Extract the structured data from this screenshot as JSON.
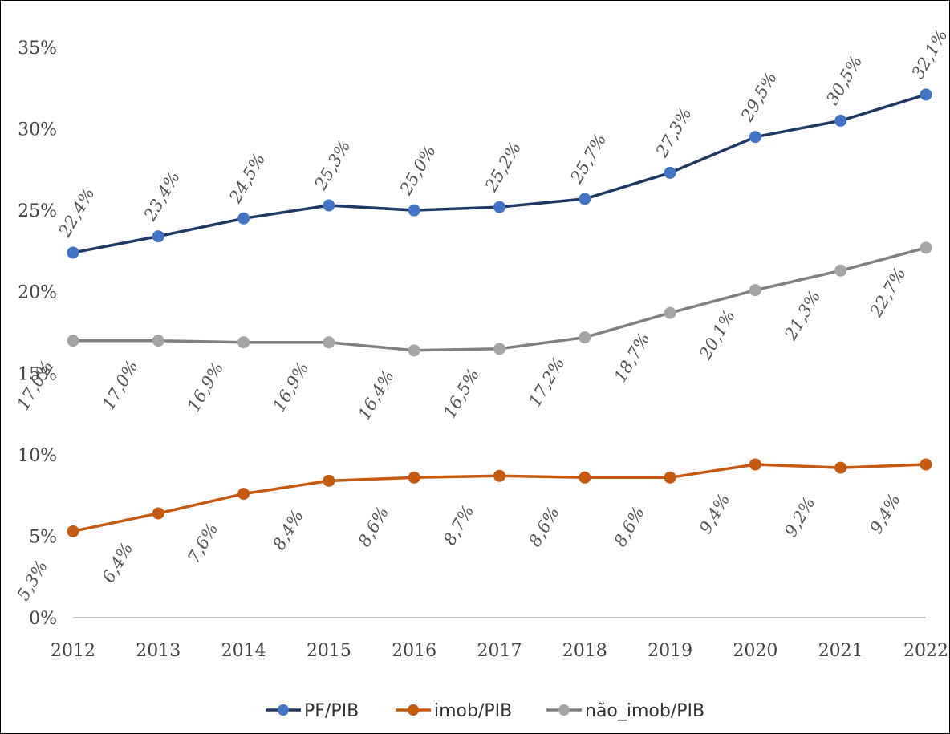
{
  "chart_data": {
    "type": "line",
    "title": "",
    "xlabel": "",
    "ylabel": "",
    "categories": [
      "2012",
      "2013",
      "2014",
      "2015",
      "2016",
      "2017",
      "2018",
      "2019",
      "2020",
      "2021",
      "2022"
    ],
    "ylim": [
      0,
      35
    ],
    "yticks": [
      "0%",
      "5%",
      "10%",
      "15%",
      "20%",
      "25%",
      "30%",
      "35%"
    ],
    "legend_position": "bottom",
    "grid": false,
    "series": [
      {
        "name": "PF/PIB",
        "color": "#203864",
        "marker_color": "#4472C4",
        "values": [
          22.4,
          23.4,
          24.5,
          25.3,
          25.0,
          25.2,
          25.7,
          27.3,
          29.5,
          30.5,
          32.1
        ],
        "labels": [
          "22,4%",
          "23,4%",
          "24,5%",
          "25,3%",
          "25,0%",
          "25,2%",
          "25,7%",
          "27,3%",
          "29,5%",
          "30,5%",
          "32,1%"
        ],
        "label_side": "above"
      },
      {
        "name": "imob/PIB",
        "color": "#C55A11",
        "marker_color": "#C55A11",
        "values": [
          5.3,
          6.4,
          7.6,
          8.4,
          8.6,
          8.7,
          8.6,
          8.6,
          9.4,
          9.2,
          9.4
        ],
        "labels": [
          "5,3%",
          "6,4%",
          "7,6%",
          "8,4%",
          "8,6%",
          "8,7%",
          "8,6%",
          "8,6%",
          "9,4%",
          "9,2%",
          "9,4%"
        ],
        "label_side": "below"
      },
      {
        "name": "não_imob/PIB",
        "color": "#808080",
        "marker_color": "#A5A5A5",
        "values": [
          17.0,
          17.0,
          16.9,
          16.9,
          16.4,
          16.5,
          17.2,
          18.7,
          20.1,
          21.3,
          22.7
        ],
        "labels": [
          "17,0%",
          "17,0%",
          "16,9%",
          "16,9%",
          "16,4%",
          "16,5%",
          "17,2%",
          "18,7%",
          "20,1%",
          "21,3%",
          "22,7%"
        ],
        "label_side": "below"
      }
    ]
  }
}
